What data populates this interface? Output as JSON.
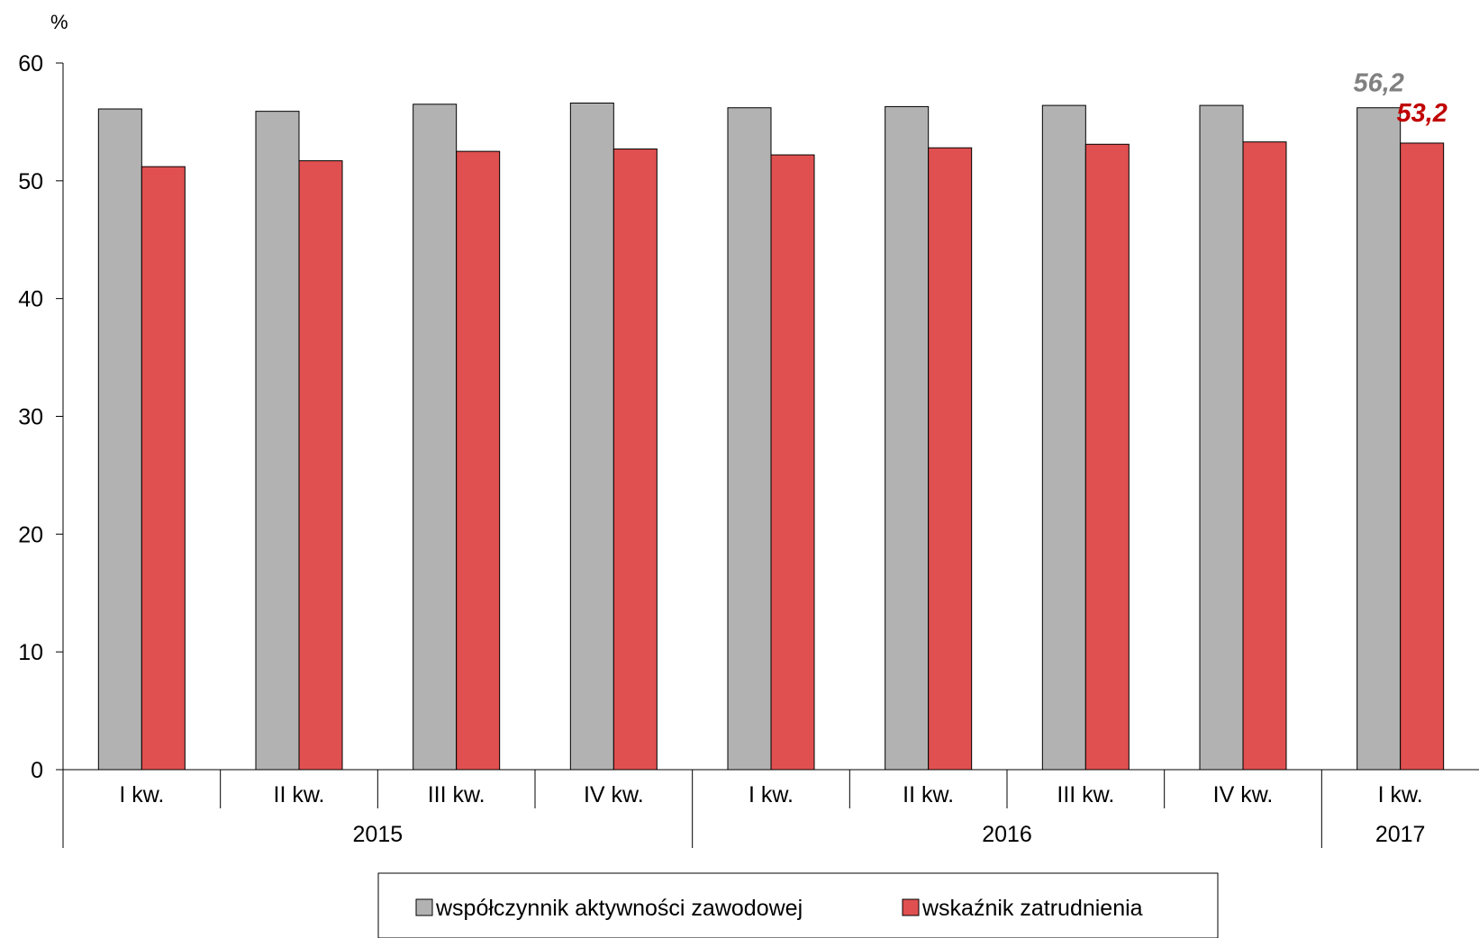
{
  "chart_data": {
    "type": "bar",
    "unit_label": "%",
    "ylim": [
      0,
      60
    ],
    "yticks": [
      0,
      10,
      20,
      30,
      40,
      50,
      60
    ],
    "grid": false,
    "categories": [
      "I kw.",
      "II kw.",
      "III kw.",
      "IV kw.",
      "I kw.",
      "II kw.",
      "III kw.",
      "IV kw.",
      "I kw."
    ],
    "year_groups": [
      {
        "label": "2015",
        "start": 0,
        "end": 3
      },
      {
        "label": "2016",
        "start": 4,
        "end": 7
      },
      {
        "label": "2017",
        "start": 8,
        "end": 8
      }
    ],
    "series": [
      {
        "name": "współczynnik aktywności zawodowej",
        "color": "#b2b2b2",
        "label_color": "#808080",
        "values": [
          56.1,
          55.9,
          56.5,
          56.6,
          56.2,
          56.3,
          56.4,
          56.4,
          56.2
        ]
      },
      {
        "name": "wskaźnik zatrudnienia",
        "color": "#e05050",
        "label_color": "#c00000",
        "values": [
          51.2,
          51.7,
          52.5,
          52.7,
          52.2,
          52.8,
          53.1,
          53.3,
          53.2
        ]
      }
    ],
    "data_labels": [
      {
        "series": 0,
        "index": 8,
        "text": "56,2"
      },
      {
        "series": 1,
        "index": 8,
        "text": "53,2"
      }
    ],
    "legend_position": "bottom"
  }
}
